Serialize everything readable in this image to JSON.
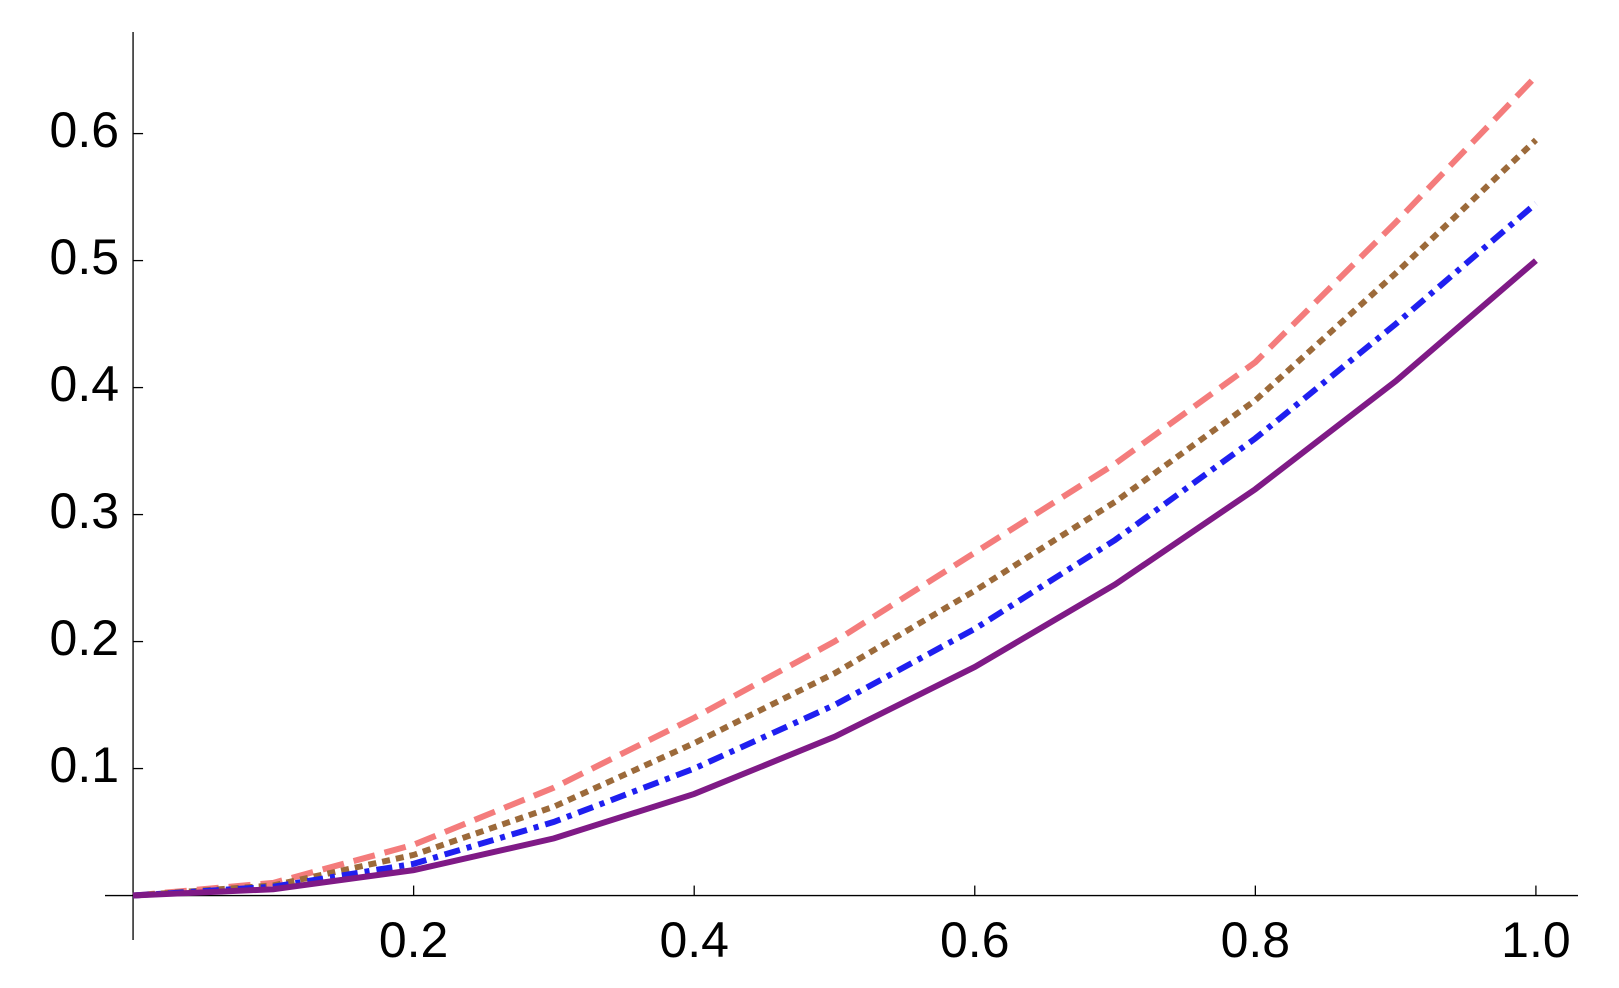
{
  "chart_data": {
    "type": "line",
    "x": [
      0,
      0.1,
      0.2,
      0.3,
      0.4,
      0.5,
      0.6,
      0.7,
      0.8,
      0.9,
      1
    ],
    "series": [
      {
        "color": "#f47c7c",
        "dash": "dashed",
        "values": [
          0,
          0.01,
          0.04,
          0.085,
          0.14,
          0.2,
          0.27,
          0.34,
          0.42,
          0.53,
          0.645
        ]
      },
      {
        "color": "#9c6a3a",
        "dash": "dotted",
        "values": [
          0,
          0.008,
          0.032,
          0.07,
          0.12,
          0.175,
          0.24,
          0.31,
          0.39,
          0.49,
          0.595
        ]
      },
      {
        "color": "#1f1ff0",
        "dash": "dashdot",
        "values": [
          0,
          0.007,
          0.025,
          0.058,
          0.1,
          0.15,
          0.21,
          0.28,
          0.36,
          0.45,
          0.545
        ]
      },
      {
        "color": "#7f1a86",
        "dash": "solid",
        "values": [
          0,
          0.005,
          0.02,
          0.045,
          0.08,
          0.125,
          0.18,
          0.245,
          0.32,
          0.405,
          0.5
        ]
      }
    ],
    "xlim": [
      -0.02,
      1.03
    ],
    "ylim": [
      -0.035,
      0.68
    ],
    "xticks": [
      0.2,
      0.4,
      0.6,
      0.8,
      {
        "value": 1,
        "label": "1.0"
      }
    ],
    "yticks": [
      0.1,
      0.2,
      0.3,
      0.4,
      0.5,
      0.6
    ]
  }
}
